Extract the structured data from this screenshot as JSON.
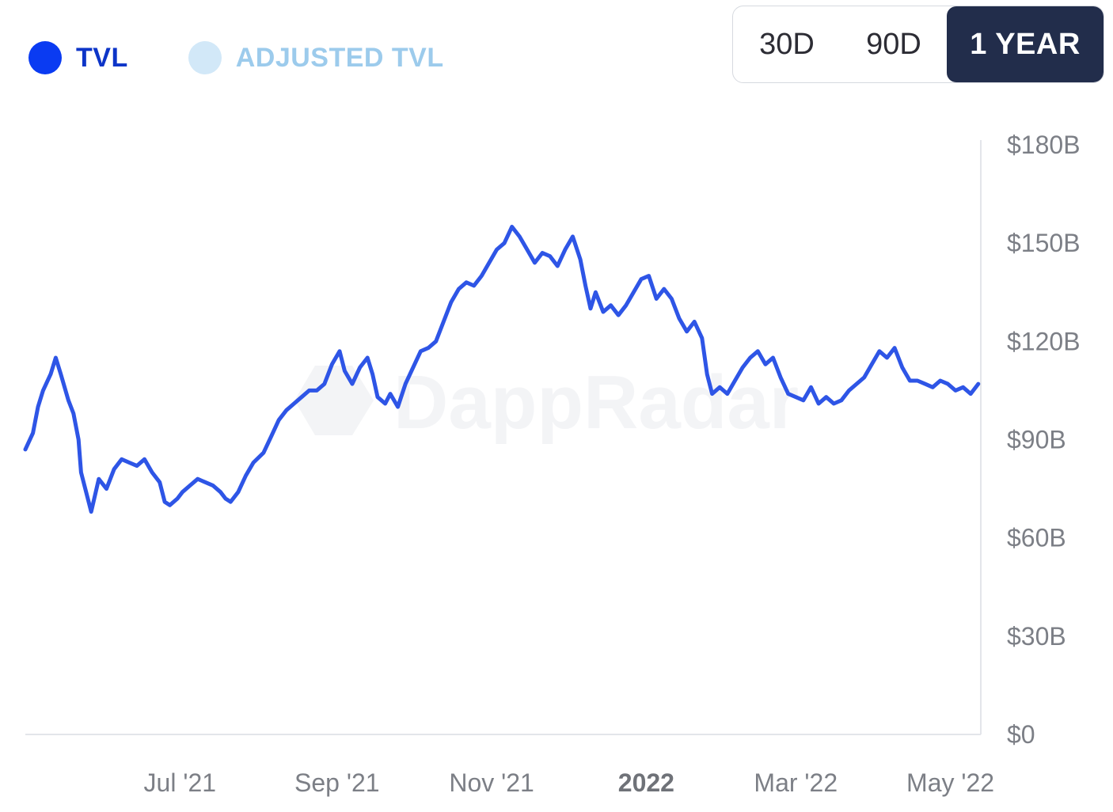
{
  "legend": {
    "items": [
      {
        "label": "TVL",
        "color": "#0a3bf2",
        "text_color": "#0d35c8"
      },
      {
        "label": "ADJUSTED TVL",
        "color": "#d2e8f8",
        "text_color": "#9ccbec"
      }
    ]
  },
  "range": {
    "options": [
      "30D",
      "90D",
      "1 YEAR"
    ],
    "selected": "1 YEAR"
  },
  "watermark": {
    "text": "DappRadar"
  },
  "colors": {
    "line": "#2e55e6",
    "axis": "#e3e5ea",
    "active_button": "#222d4b"
  },
  "chart_data": {
    "type": "line",
    "title": "",
    "xlabel": "",
    "ylabel": "",
    "x_ticks": [
      {
        "label": "Jul '21",
        "date": "2021-07-01",
        "bold": false
      },
      {
        "label": "Sep '21",
        "date": "2021-09-01",
        "bold": false
      },
      {
        "label": "Nov '21",
        "date": "2021-11-01",
        "bold": false
      },
      {
        "label": "2022",
        "date": "2022-01-01",
        "bold": true
      },
      {
        "label": "Mar '22",
        "date": "2022-03-01",
        "bold": false
      },
      {
        "label": "May '22",
        "date": "2022-05-01",
        "bold": false
      }
    ],
    "y_ticks": [
      {
        "label": "$0",
        "value": 0
      },
      {
        "label": "$30B",
        "value": 30
      },
      {
        "label": "$60B",
        "value": 60
      },
      {
        "label": "$90B",
        "value": 90
      },
      {
        "label": "$120B",
        "value": 120
      },
      {
        "label": "$150B",
        "value": 150
      },
      {
        "label": "$180B",
        "value": 180
      }
    ],
    "ylim": [
      0,
      180
    ],
    "xlim": [
      "2021-05-01",
      "2022-05-13"
    ],
    "grid": false,
    "y_axis_position": "right",
    "series": [
      {
        "name": "TVL",
        "unit": "$B",
        "points": [
          [
            "2021-05-01",
            87
          ],
          [
            "2021-05-04",
            92
          ],
          [
            "2021-05-06",
            100
          ],
          [
            "2021-05-08",
            105
          ],
          [
            "2021-05-11",
            110
          ],
          [
            "2021-05-13",
            115
          ],
          [
            "2021-05-15",
            110
          ],
          [
            "2021-05-18",
            102
          ],
          [
            "2021-05-20",
            98
          ],
          [
            "2021-05-22",
            90
          ],
          [
            "2021-05-23",
            80
          ],
          [
            "2021-05-25",
            74
          ],
          [
            "2021-05-27",
            68
          ],
          [
            "2021-05-30",
            78
          ],
          [
            "2021-06-02",
            75
          ],
          [
            "2021-06-05",
            81
          ],
          [
            "2021-06-08",
            84
          ],
          [
            "2021-06-11",
            83
          ],
          [
            "2021-06-14",
            82
          ],
          [
            "2021-06-17",
            84
          ],
          [
            "2021-06-20",
            80
          ],
          [
            "2021-06-23",
            77
          ],
          [
            "2021-06-25",
            71
          ],
          [
            "2021-06-27",
            70
          ],
          [
            "2021-06-30",
            72
          ],
          [
            "2021-07-02",
            74
          ],
          [
            "2021-07-05",
            76
          ],
          [
            "2021-07-08",
            78
          ],
          [
            "2021-07-11",
            77
          ],
          [
            "2021-07-14",
            76
          ],
          [
            "2021-07-17",
            74
          ],
          [
            "2021-07-19",
            72
          ],
          [
            "2021-07-21",
            71
          ],
          [
            "2021-07-24",
            74
          ],
          [
            "2021-07-27",
            79
          ],
          [
            "2021-07-30",
            83
          ],
          [
            "2021-08-03",
            86
          ],
          [
            "2021-08-06",
            91
          ],
          [
            "2021-08-09",
            96
          ],
          [
            "2021-08-12",
            99
          ],
          [
            "2021-08-15",
            101
          ],
          [
            "2021-08-18",
            103
          ],
          [
            "2021-08-21",
            105
          ],
          [
            "2021-08-24",
            105
          ],
          [
            "2021-08-27",
            107
          ],
          [
            "2021-08-30",
            113
          ],
          [
            "2021-09-02",
            117
          ],
          [
            "2021-09-04",
            111
          ],
          [
            "2021-09-07",
            107
          ],
          [
            "2021-09-10",
            112
          ],
          [
            "2021-09-13",
            115
          ],
          [
            "2021-09-15",
            110
          ],
          [
            "2021-09-17",
            103
          ],
          [
            "2021-09-20",
            101
          ],
          [
            "2021-09-22",
            104
          ],
          [
            "2021-09-25",
            100
          ],
          [
            "2021-09-28",
            107
          ],
          [
            "2021-10-01",
            112
          ],
          [
            "2021-10-04",
            117
          ],
          [
            "2021-10-07",
            118
          ],
          [
            "2021-10-10",
            120
          ],
          [
            "2021-10-13",
            126
          ],
          [
            "2021-10-16",
            132
          ],
          [
            "2021-10-19",
            136
          ],
          [
            "2021-10-22",
            138
          ],
          [
            "2021-10-25",
            137
          ],
          [
            "2021-10-28",
            140
          ],
          [
            "2021-10-31",
            144
          ],
          [
            "2021-11-03",
            148
          ],
          [
            "2021-11-06",
            150
          ],
          [
            "2021-11-09",
            155
          ],
          [
            "2021-11-12",
            152
          ],
          [
            "2021-11-15",
            148
          ],
          [
            "2021-11-18",
            144
          ],
          [
            "2021-11-21",
            147
          ],
          [
            "2021-11-24",
            146
          ],
          [
            "2021-11-27",
            143
          ],
          [
            "2021-11-30",
            148
          ],
          [
            "2021-12-03",
            152
          ],
          [
            "2021-12-06",
            145
          ],
          [
            "2021-12-08",
            137
          ],
          [
            "2021-12-10",
            130
          ],
          [
            "2021-12-12",
            135
          ],
          [
            "2021-12-15",
            129
          ],
          [
            "2021-12-18",
            131
          ],
          [
            "2021-12-21",
            128
          ],
          [
            "2021-12-24",
            131
          ],
          [
            "2021-12-27",
            135
          ],
          [
            "2021-12-30",
            139
          ],
          [
            "2022-01-02",
            140
          ],
          [
            "2022-01-05",
            133
          ],
          [
            "2022-01-08",
            136
          ],
          [
            "2022-01-11",
            133
          ],
          [
            "2022-01-14",
            127
          ],
          [
            "2022-01-17",
            123
          ],
          [
            "2022-01-20",
            126
          ],
          [
            "2022-01-23",
            121
          ],
          [
            "2022-01-25",
            110
          ],
          [
            "2022-01-27",
            104
          ],
          [
            "2022-01-30",
            106
          ],
          [
            "2022-02-02",
            104
          ],
          [
            "2022-02-05",
            108
          ],
          [
            "2022-02-08",
            112
          ],
          [
            "2022-02-11",
            115
          ],
          [
            "2022-02-14",
            117
          ],
          [
            "2022-02-17",
            113
          ],
          [
            "2022-02-20",
            115
          ],
          [
            "2022-02-23",
            109
          ],
          [
            "2022-02-26",
            104
          ],
          [
            "2022-03-01",
            103
          ],
          [
            "2022-03-04",
            102
          ],
          [
            "2022-03-07",
            106
          ],
          [
            "2022-03-10",
            101
          ],
          [
            "2022-03-13",
            103
          ],
          [
            "2022-03-16",
            101
          ],
          [
            "2022-03-19",
            102
          ],
          [
            "2022-03-22",
            105
          ],
          [
            "2022-03-25",
            107
          ],
          [
            "2022-03-28",
            109
          ],
          [
            "2022-03-31",
            113
          ],
          [
            "2022-04-03",
            117
          ],
          [
            "2022-04-06",
            115
          ],
          [
            "2022-04-09",
            118
          ],
          [
            "2022-04-12",
            112
          ],
          [
            "2022-04-15",
            108
          ],
          [
            "2022-04-18",
            108
          ],
          [
            "2022-04-21",
            107
          ],
          [
            "2022-04-24",
            106
          ],
          [
            "2022-04-27",
            108
          ],
          [
            "2022-04-30",
            107
          ],
          [
            "2022-05-03",
            105
          ],
          [
            "2022-05-06",
            106
          ],
          [
            "2022-05-09",
            104
          ],
          [
            "2022-05-12",
            107
          ]
        ]
      }
    ]
  }
}
